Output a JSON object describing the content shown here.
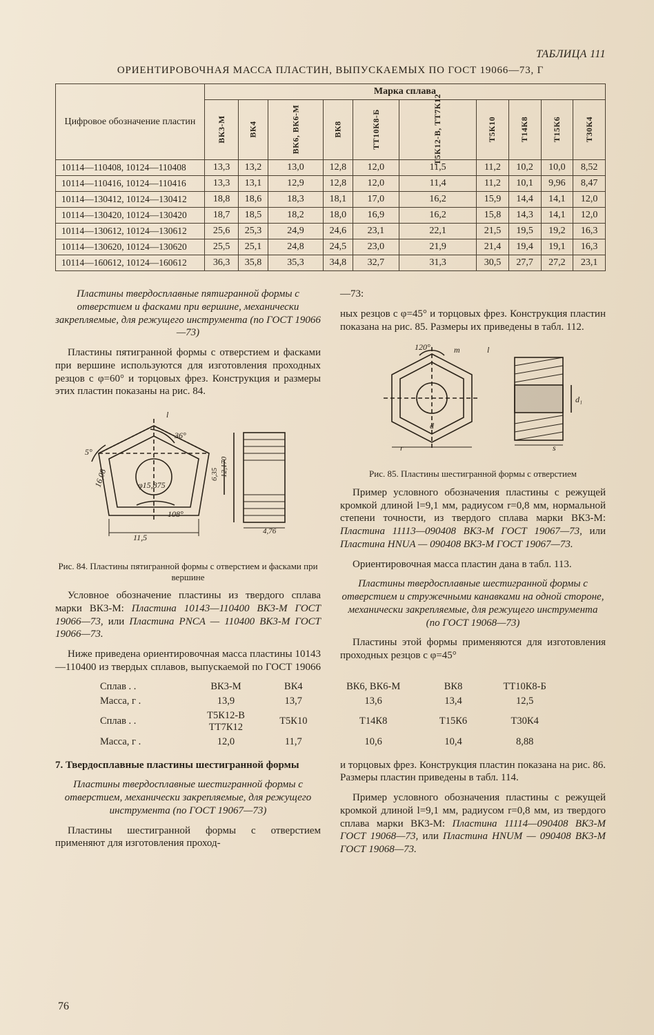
{
  "table111": {
    "label": "ТАБЛИЦА 111",
    "title": "ОРИЕНТИРОВОЧНАЯ МАССА ПЛАСТИН, ВЫПУСКАЕМЫХ ПО ГОСТ 19066—73, Г",
    "row_header": "Цифровое обозначение пластин",
    "super_header": "Марка сплава",
    "cols": [
      "ВК3-М",
      "ВК4",
      "ВК6,\nВК6-М",
      "ВК8",
      "ТТ10К8-Б",
      "Т5К12-В,\nТТ7К12",
      "Т5К10",
      "Т14К8",
      "Т15К6",
      "Т30К4"
    ],
    "rows": [
      {
        "label": "10114—110408, 10124—110408",
        "vals": [
          "13,3",
          "13,2",
          "13,0",
          "12,8",
          "12,0",
          "11,5",
          "11,2",
          "10,2",
          "10,0",
          "8,52"
        ]
      },
      {
        "label": "10114—110416, 10124—110416",
        "vals": [
          "13,3",
          "13,1",
          "12,9",
          "12,8",
          "12,0",
          "11,4",
          "11,2",
          "10,1",
          "9,96",
          "8,47"
        ]
      },
      {
        "label": "10114—130412, 10124—130412",
        "vals": [
          "18,8",
          "18,6",
          "18,3",
          "18,1",
          "17,0",
          "16,2",
          "15,9",
          "14,4",
          "14,1",
          "12,0"
        ]
      },
      {
        "label": "10114—130420, 10124—130420",
        "vals": [
          "18,7",
          "18,5",
          "18,2",
          "18,0",
          "16,9",
          "16,2",
          "15,8",
          "14,3",
          "14,1",
          "12,0"
        ]
      },
      {
        "label": "10114—130612, 10124—130612",
        "vals": [
          "25,6",
          "25,3",
          "24,9",
          "24,6",
          "23,1",
          "22,1",
          "21,5",
          "19,5",
          "19,2",
          "16,3"
        ]
      },
      {
        "label": "10114—130620, 10124—130620",
        "vals": [
          "25,5",
          "25,1",
          "24,8",
          "24,5",
          "23,0",
          "21,9",
          "21,4",
          "19,4",
          "19,1",
          "16,3"
        ]
      },
      {
        "label": "10114—160612, 10124—160612",
        "vals": [
          "36,3",
          "35,8",
          "35,3",
          "34,8",
          "32,7",
          "31,3",
          "30,5",
          "27,7",
          "27,2",
          "23,1"
        ]
      }
    ]
  },
  "left": {
    "h1": "Пластины твердосплавные пятигранной формы с отверстием и фасками при вершине, механически закрепляемые, для режущего инструмента (по ГОСТ 19066—73)",
    "p1": "Пластины пятигранной формы с отверстием и фасками при вершине используются для изготовления проходных резцов с φ=60° и торцовых фрез. Конструкция и размеры этих пластин показаны на рис. 84.",
    "fig84": {
      "caption": "Рис. 84. Пластины пятигранной формы с отверстием и фасками при вершине",
      "angle1": "36°",
      "angle2": "5°",
      "angle3": "108°",
      "dia": "φ15,875",
      "edge": "16,08",
      "dim_l": "11,5",
      "dim_h": "12,170",
      "dim_f": "6,35",
      "dim_s": "4,76",
      "lbl_l": "l"
    },
    "p2a": "Условное обозначение пластины из твердого сплава марки ВК3-М: ",
    "p2b": "Пластина 10143—110400 ВК3-М ГОСТ 19066—73,",
    "p2c": " или ",
    "p2d": "Пластина PNCA — 110400 ВК3-М ГОСТ 19066—73.",
    "p3": "Ниже приведена ориентировочная масса пластины 10143—110400 из твердых сплавов, выпускаемой по ГОСТ 19066—73:"
  },
  "right": {
    "p0": "ных резцов с φ=45° и торцовых фрез. Конструкция пластин показана на рис. 85. Размеры их приведены в табл. 112.",
    "fig85": {
      "caption": "Рис. 85. Пластины шестигранной формы с отверстием",
      "angle": "120°",
      "m": "m",
      "d": "d",
      "r": "r",
      "d1": "d₁",
      "s": "s",
      "l": "l"
    },
    "p1a": "Пример условного обозначения пластины с режущей кромкой длиной l=9,1 мм, радиусом r=0,8 мм, нормальной степени точности, из твердого сплава марки ВК3-М: ",
    "p1b": "Пластина 11113—090408 ВК3-М ГОСТ 19067—73,",
    "p1c": " или ",
    "p1d": "Пластина HNUA — 090408 ВК3-М ГОСТ 19067—73.",
    "p2": "Ориентировочная масса пластин дана в табл. 113.",
    "h2": "Пластины твердосплавные шестигранной формы с отверстием и стружечными канавками на одной стороне, механически закрепляемые, для режущего инструмента (по ГОСТ 19068—73)",
    "p3": "Пластины этой формы применяются для изготовления проходных резцов с φ=45°"
  },
  "mass_mini": {
    "row1_label": "Сплав  .  .",
    "row2_label": "Масса, г  .",
    "row3_label": "Сплав  .  .",
    "row4_label": "Масса, г  .",
    "r1": [
      "ВК3-М",
      "ВК4",
      "ВК6, ВК6-М",
      "ВК8",
      "ТТ10К8-Б"
    ],
    "r2": [
      "13,9",
      "13,7",
      "13,6",
      "13,4",
      "12,5"
    ],
    "r3": [
      "Т5К12-В\nТТ7К12",
      "Т5К10",
      "Т14К8",
      "Т15К6",
      "Т30К4"
    ],
    "r4": [
      "12,0",
      "11,7",
      "10,6",
      "10,4",
      "8,88"
    ]
  },
  "bottom": {
    "sec": "7. Твердосплавные пластины шестигранной формы",
    "h": "Пластины твердосплавные шестигранной формы с отверстием, механически закрепляемые, для режущего инструмента (по ГОСТ 19067—73)",
    "l1": "Пластины шестигранной формы с отверстием применяют для изготовления проход-",
    "r1": "и торцовых фрез. Конструкция пластин показана на рис. 86. Размеры пластин приведены в табл. 114.",
    "r2a": "Пример условного обозначения пластины с режущей кромкой длиной l=9,1 мм, радиусом r=0,8 мм, из твердого сплава марки ВК3-М: ",
    "r2b": "Пластина 11114—090408 ВК3-М ГОСТ 19068—73,",
    "r2c": " или ",
    "r2d": "Пластина HNUM — 090408 ВК3-М ГОСТ 19068—73."
  },
  "page_number": "76"
}
